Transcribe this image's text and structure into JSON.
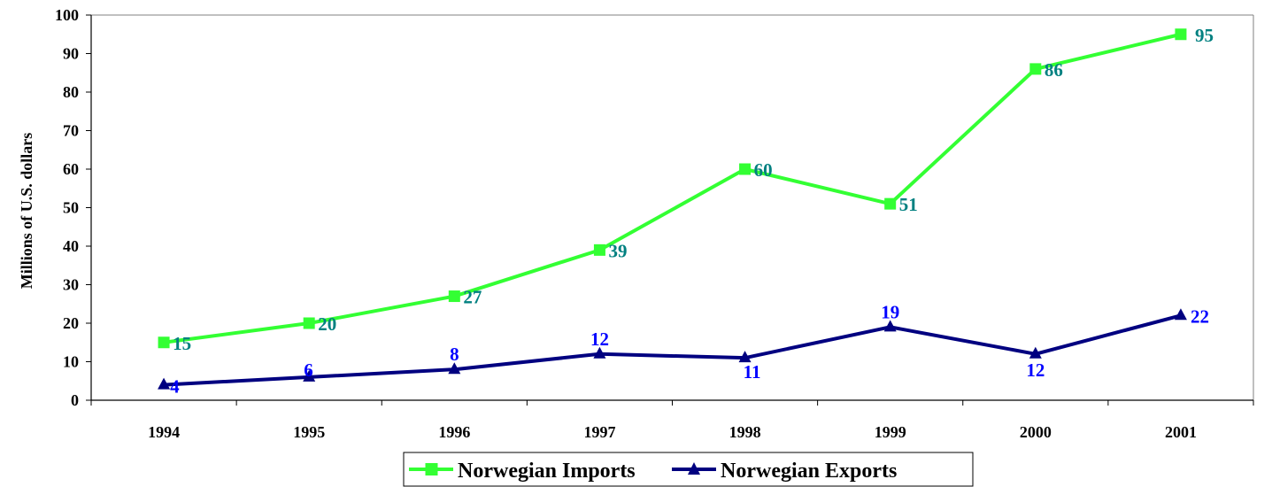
{
  "chart_data": {
    "type": "line",
    "title": "",
    "ylabel": "Millions of U.S. dollars",
    "xlabel": "",
    "x": [
      "1994",
      "1995",
      "1996",
      "1997",
      "1998",
      "1999",
      "2000",
      "2001"
    ],
    "ylim": [
      0,
      100
    ],
    "yticks": [
      0,
      10,
      20,
      30,
      40,
      50,
      60,
      70,
      80,
      90,
      100
    ],
    "grid": false,
    "legend_position": "bottom",
    "series": [
      {
        "name": "Norwegian Imports",
        "color": "#33ff33",
        "label_color": "#008080",
        "marker": "square",
        "values": [
          15,
          20,
          27,
          39,
          60,
          51,
          86,
          95
        ],
        "labels": [
          "15",
          "20",
          "27",
          "39",
          "60",
          "51",
          "86",
          "95"
        ]
      },
      {
        "name": "Norwegian Exports",
        "color": "#000080",
        "label_color": "#0000ff",
        "marker": "triangle",
        "values": [
          4,
          6,
          8,
          12,
          11,
          19,
          12,
          22
        ],
        "labels": [
          "4",
          "6",
          "8",
          "12",
          "11",
          "19",
          "12",
          "22"
        ]
      }
    ]
  }
}
